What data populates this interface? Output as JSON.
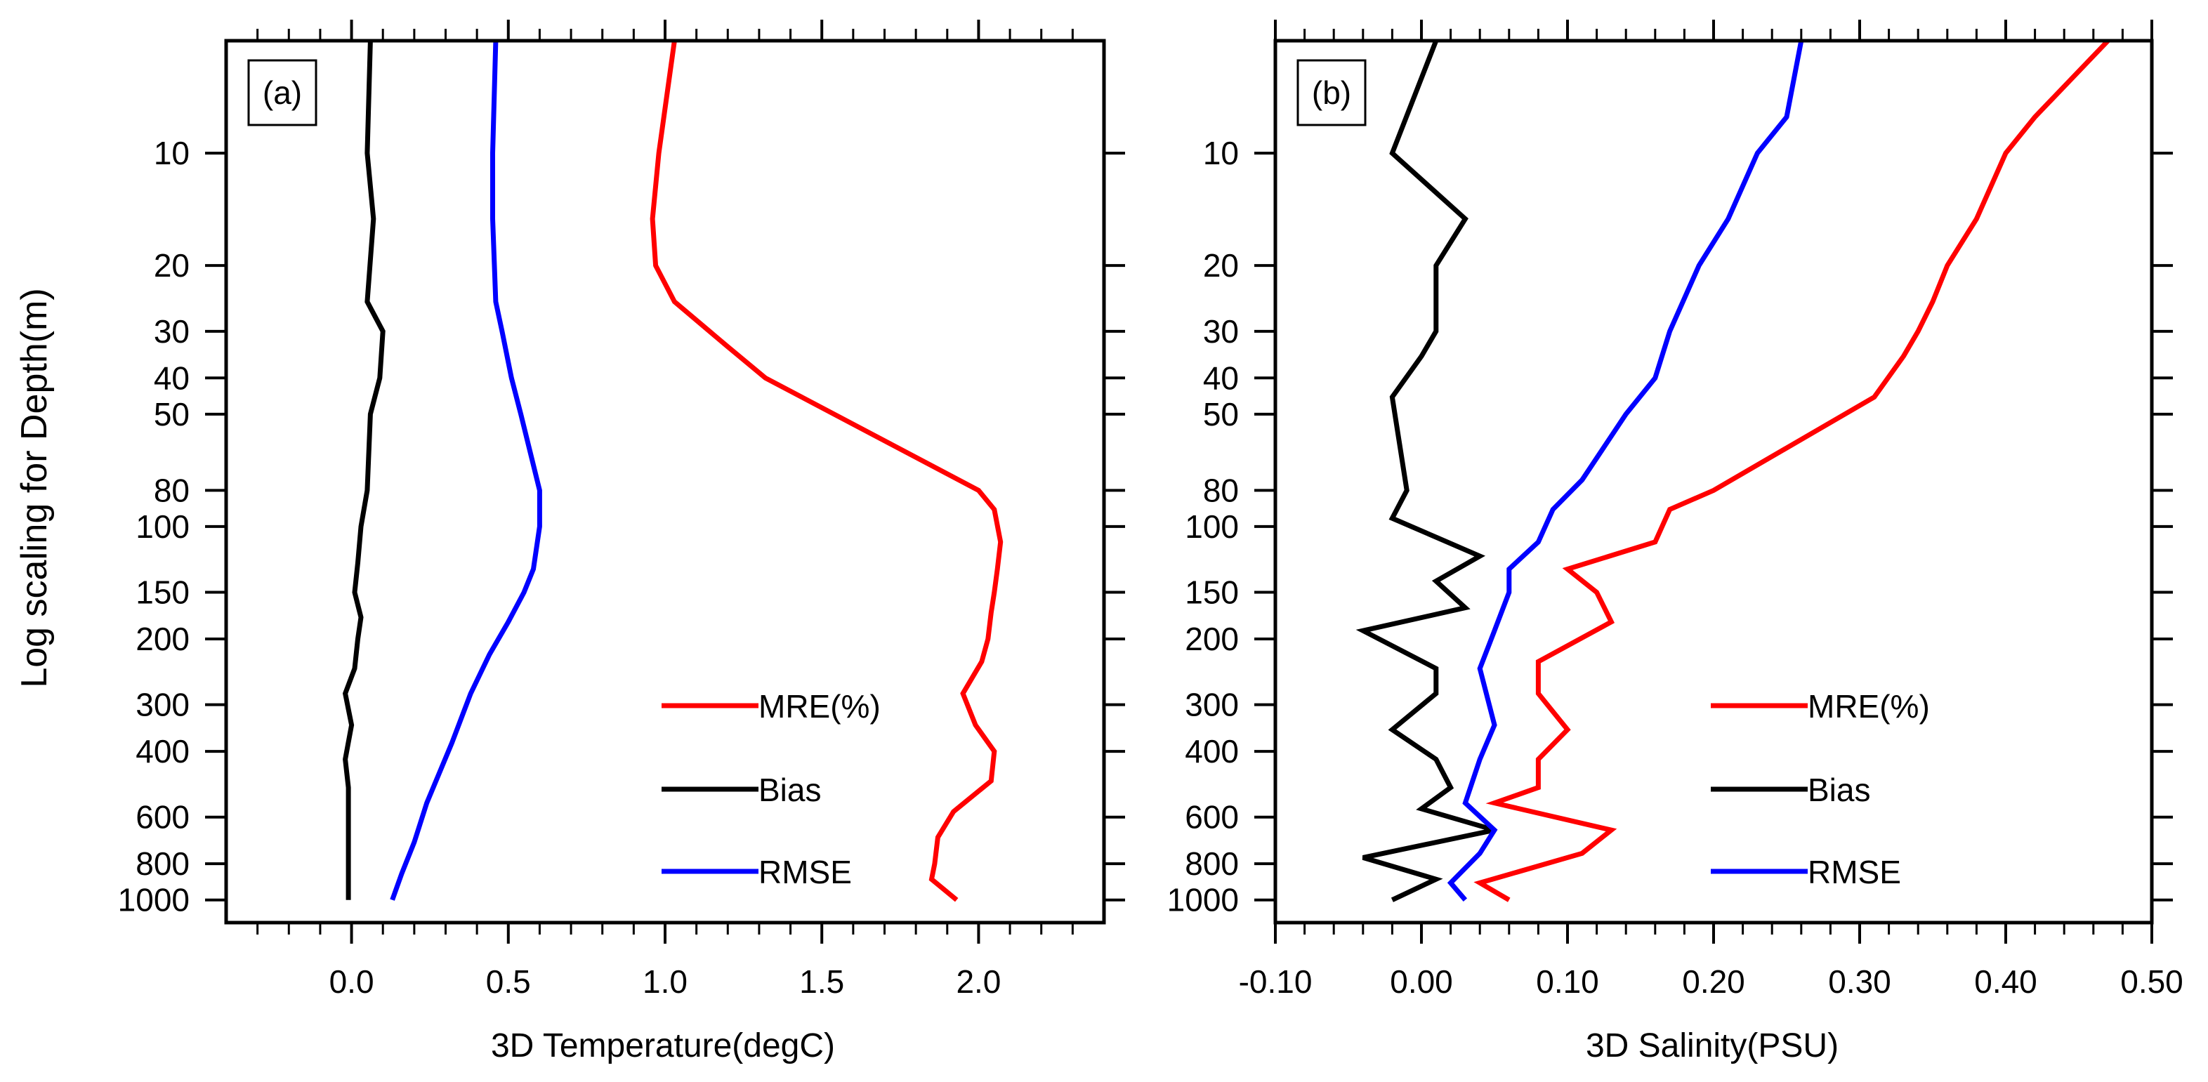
{
  "figure": {
    "ylabel": "Log scaling for Depth(m)",
    "legend_location": "lower-right"
  },
  "chart_data": [
    {
      "type": "line",
      "panel_label": "(a)",
      "xlabel": "3D Temperature(degC)",
      "ylabel": "Log scaling for Depth(m)",
      "xlim": [
        -0.4,
        2.4
      ],
      "ylim": [
        5,
        1150
      ],
      "y_scale": "log",
      "y_inverted": true,
      "xticks": [
        0.0,
        0.5,
        1.0,
        1.5,
        2.0
      ],
      "xtick_labels": [
        "0.0",
        "0.5",
        "1.0",
        "1.5",
        "2.0"
      ],
      "yticks": [
        10,
        20,
        30,
        40,
        50,
        80,
        100,
        150,
        200,
        300,
        400,
        600,
        800,
        1000
      ],
      "ytick_labels": [
        "10",
        "20",
        "30",
        "40",
        "50",
        "80",
        "100",
        "150",
        "200",
        "300",
        "400",
        "600",
        "800",
        "1000"
      ],
      "series": [
        {
          "name": "MRE(%)",
          "color": "#ff0000",
          "x": [
            1.03,
            0.98,
            0.96,
            0.97,
            1.03,
            1.2,
            1.32,
            2.0,
            2.05,
            2.07,
            2.06,
            2.05,
            2.04,
            2.03,
            2.01,
            1.95,
            1.99,
            2.05,
            2.04,
            1.92,
            1.87,
            1.86,
            1.85,
            1.93
          ],
          "y": [
            5,
            10,
            15,
            20,
            25,
            33,
            40,
            80,
            90,
            110,
            130,
            150,
            170,
            200,
            230,
            280,
            340,
            400,
            480,
            580,
            680,
            800,
            880,
            1000
          ]
        },
        {
          "name": "Bias",
          "color": "#000000",
          "x": [
            0.06,
            0.05,
            0.07,
            0.05,
            0.1,
            0.09,
            0.06,
            0.05,
            0.03,
            0.02,
            0.01,
            0.03,
            0.02,
            0.01,
            -0.02,
            0.0,
            -0.02,
            -0.01,
            -0.01,
            -0.01,
            -0.01,
            -0.01,
            -0.01
          ],
          "y": [
            5,
            10,
            15,
            25,
            30,
            40,
            50,
            80,
            100,
            125,
            150,
            175,
            200,
            240,
            280,
            340,
            420,
            500,
            600,
            700,
            800,
            900,
            1000
          ]
        },
        {
          "name": "RMSE",
          "color": "#0000ff",
          "x": [
            0.46,
            0.45,
            0.45,
            0.46,
            0.48,
            0.51,
            0.54,
            0.6,
            0.6,
            0.58,
            0.55,
            0.5,
            0.44,
            0.38,
            0.32,
            0.24,
            0.2,
            0.16,
            0.13
          ],
          "y": [
            5,
            10,
            15,
            25,
            30,
            40,
            50,
            80,
            100,
            130,
            150,
            180,
            220,
            280,
            380,
            550,
            700,
            850,
            1000
          ]
        }
      ]
    },
    {
      "type": "line",
      "panel_label": "(b)",
      "xlabel": "3D Salinity(PSU)",
      "ylabel": "",
      "xlim": [
        -0.1,
        0.5
      ],
      "ylim": [
        5,
        1150
      ],
      "y_scale": "log",
      "y_inverted": true,
      "xticks": [
        -0.1,
        0.0,
        0.1,
        0.2,
        0.3,
        0.4,
        0.5
      ],
      "xtick_labels": [
        "-0.10",
        "0.00",
        "0.10",
        "0.20",
        "0.30",
        "0.40",
        "0.50"
      ],
      "yticks": [
        10,
        20,
        30,
        40,
        50,
        80,
        100,
        150,
        200,
        300,
        400,
        600,
        800,
        1000
      ],
      "ytick_labels": [
        "10",
        "20",
        "30",
        "40",
        "50",
        "80",
        "100",
        "150",
        "200",
        "300",
        "400",
        "600",
        "800",
        "1000"
      ],
      "series": [
        {
          "name": "MRE(%)",
          "color": "#ff0000",
          "x": [
            0.47,
            0.42,
            0.4,
            0.38,
            0.36,
            0.35,
            0.34,
            0.33,
            0.31,
            0.2,
            0.17,
            0.16,
            0.1,
            0.12,
            0.13,
            0.08,
            0.08,
            0.1,
            0.08,
            0.08,
            0.05,
            0.13,
            0.11,
            0.04,
            0.06
          ],
          "y": [
            5,
            8,
            10,
            15,
            20,
            25,
            30,
            35,
            45,
            80,
            90,
            110,
            130,
            150,
            180,
            230,
            280,
            350,
            420,
            500,
            550,
            650,
            750,
            900,
            1000
          ]
        },
        {
          "name": "Bias",
          "color": "#000000",
          "x": [
            0.01,
            -0.02,
            0.03,
            0.01,
            0.01,
            0.0,
            -0.02,
            -0.01,
            -0.02,
            0.04,
            0.01,
            0.03,
            -0.04,
            0.01,
            0.01,
            -0.02,
            0.01,
            0.02,
            0.0,
            0.05,
            -0.04,
            0.01,
            -0.02
          ],
          "y": [
            5,
            10,
            15,
            20,
            30,
            35,
            45,
            80,
            95,
            120,
            140,
            165,
            190,
            240,
            280,
            350,
            420,
            500,
            570,
            650,
            770,
            880,
            1000
          ]
        },
        {
          "name": "RMSE",
          "color": "#0000ff",
          "x": [
            0.26,
            0.25,
            0.23,
            0.21,
            0.19,
            0.17,
            0.16,
            0.14,
            0.11,
            0.09,
            0.08,
            0.06,
            0.06,
            0.05,
            0.04,
            0.05,
            0.04,
            0.03,
            0.05,
            0.04,
            0.02,
            0.03
          ],
          "y": [
            5,
            8,
            10,
            15,
            20,
            30,
            40,
            50,
            75,
            90,
            110,
            130,
            150,
            190,
            240,
            340,
            420,
            550,
            650,
            750,
            900,
            1000
          ]
        }
      ]
    }
  ]
}
